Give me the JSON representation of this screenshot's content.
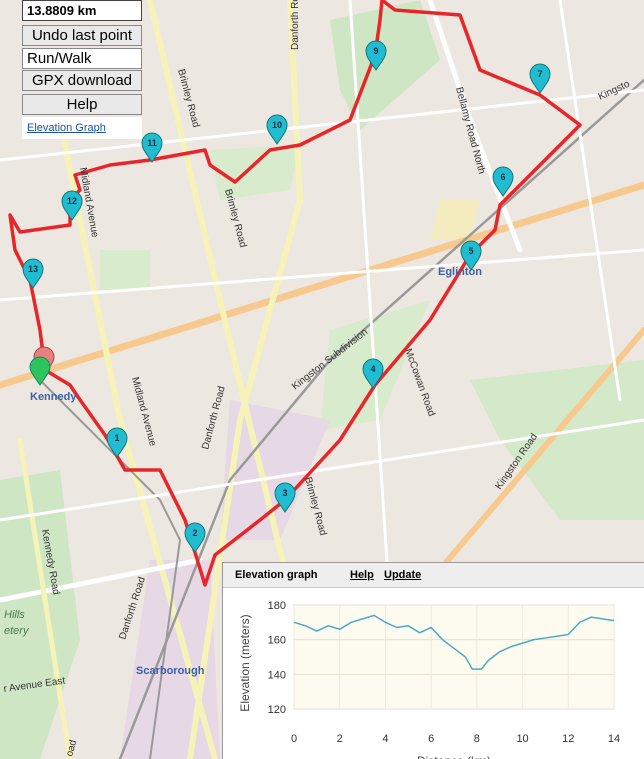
{
  "controls": {
    "distance": "13.8809 km",
    "undo": "Undo last point",
    "mode": "Run/Walk",
    "gpx": "GPX download",
    "help": "Help",
    "elevation_link": "Elevation Graph"
  },
  "map": {
    "markers": [
      "1",
      "2",
      "3",
      "4",
      "5",
      "6",
      "7",
      "9",
      "10",
      "11",
      "12",
      "13"
    ],
    "labels": [
      "Brimley Road",
      "Danforth Road",
      "Bellamy Road North",
      "Midland Avenue",
      "Brimley Road",
      "Kingston Subdivision",
      "McCowan Road",
      "Eglinton",
      "Kennedy",
      "Midland Avenue",
      "Danforth Road",
      "Brimley Road",
      "Kingston Road",
      "Kennedy Road",
      "Danforth Road",
      "Scarborough",
      "Hills",
      "etery",
      "r Avenue East",
      "oad",
      "Kingsto"
    ]
  },
  "elevation_panel": {
    "title": "Elevation graph",
    "help": "Help",
    "update": "Update"
  },
  "chart_data": {
    "type": "line",
    "x": [
      0,
      0.5,
      1,
      1.5,
      2,
      2.5,
      3,
      3.5,
      4,
      4.5,
      5,
      5.5,
      6,
      6.5,
      7,
      7.5,
      7.8,
      8.2,
      8.5,
      9,
      9.5,
      10,
      10.5,
      11,
      11.5,
      12,
      12.5,
      13,
      13.5,
      14
    ],
    "values": [
      170,
      168,
      165,
      168,
      166,
      170,
      172,
      174,
      170,
      167,
      168,
      164,
      167,
      160,
      155,
      150,
      143,
      143,
      148,
      153,
      156,
      158,
      160,
      161,
      162,
      163,
      170,
      173,
      172,
      171
    ],
    "color": "#4ba9c4",
    "xlim": [
      0,
      14
    ],
    "ylim": [
      120,
      180
    ],
    "xticks": [
      0,
      2,
      4,
      6,
      8,
      10,
      12,
      14
    ],
    "yticks": [
      120,
      140,
      160,
      180
    ],
    "ylabel": "Elevation (meters)",
    "xlabel": "Distance (km)",
    "grid": true
  }
}
